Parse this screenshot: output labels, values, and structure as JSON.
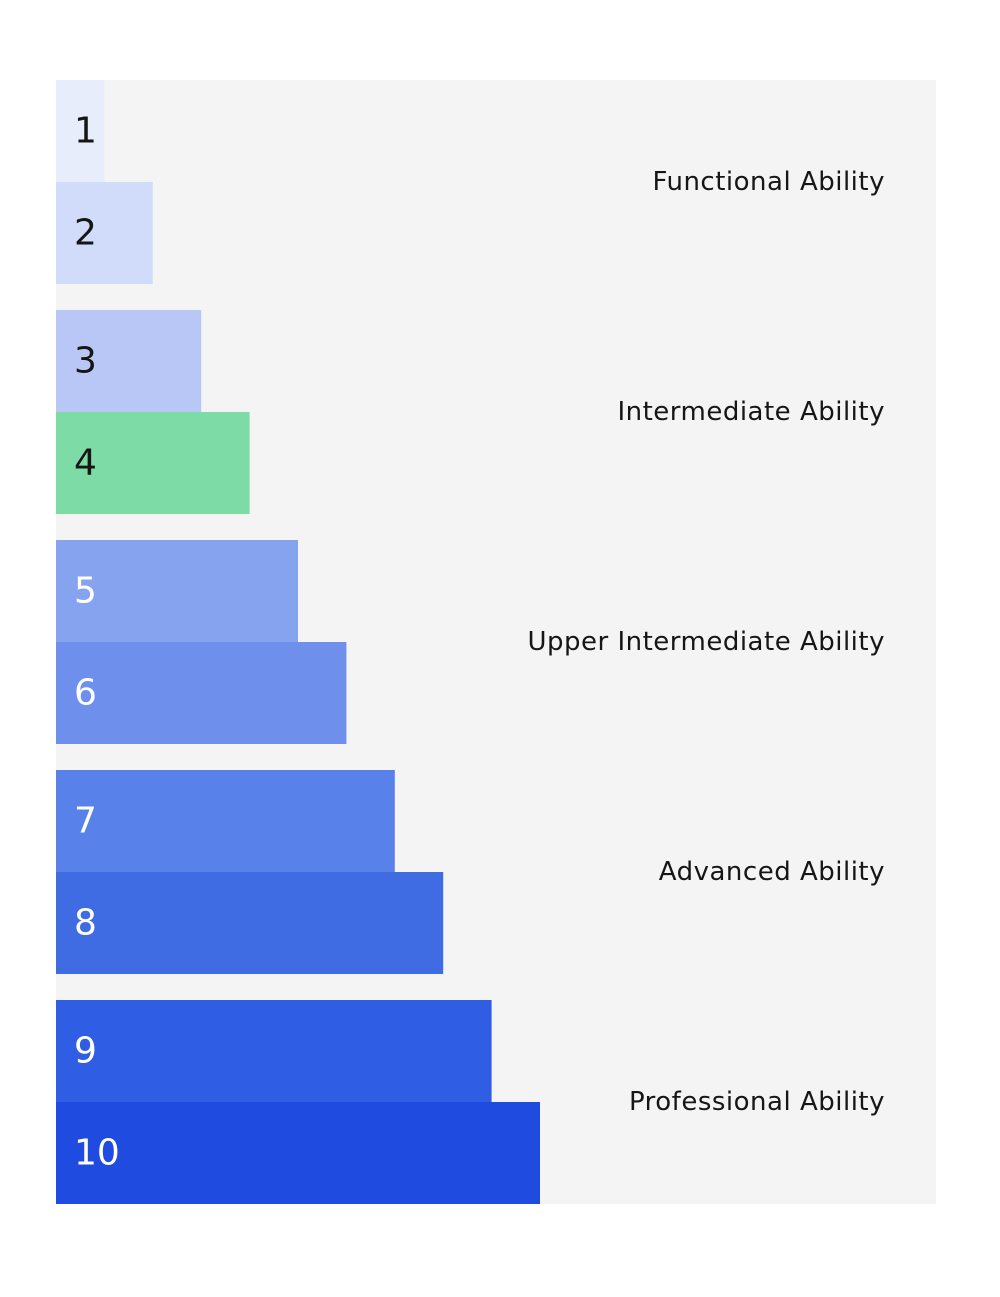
{
  "chart_data": {
    "type": "bar",
    "orientation": "horizontal",
    "categories": [
      "1",
      "2",
      "3",
      "4",
      "5",
      "6",
      "7",
      "8",
      "9",
      "10"
    ],
    "values": [
      1,
      2,
      3,
      4,
      5,
      6,
      7,
      8,
      9,
      10
    ],
    "bar_colors": [
      "#e8edfc",
      "#d0dcf9",
      "#b8c7f5",
      "#7ddca5",
      "#86a3ef",
      "#6e90ec",
      "#5882ea",
      "#3f6be3",
      "#2f5ee4",
      "#1f4be0"
    ],
    "label_colors": [
      "#161616",
      "#161616",
      "#161616",
      "#161616",
      "#ffffff",
      "#ffffff",
      "#ffffff",
      "#ffffff",
      "#ffffff",
      "#ffffff"
    ],
    "highlight": {
      "category": "4",
      "color": "#7ddca5"
    },
    "groups": [
      {
        "label": "Functional Ability",
        "levels": [
          "1",
          "2"
        ]
      },
      {
        "label": "Intermediate Ability",
        "levels": [
          "3",
          "4"
        ]
      },
      {
        "label": "Upper Intermediate Ability",
        "levels": [
          "5",
          "6"
        ]
      },
      {
        "label": "Advanced Ability",
        "levels": [
          "7",
          "8"
        ]
      },
      {
        "label": "Professional Ability",
        "levels": [
          "9",
          "10"
        ]
      }
    ],
    "title": "",
    "xlabel": "",
    "ylabel": "",
    "grid": false,
    "legend": "none",
    "background": "#f4f4f4"
  }
}
